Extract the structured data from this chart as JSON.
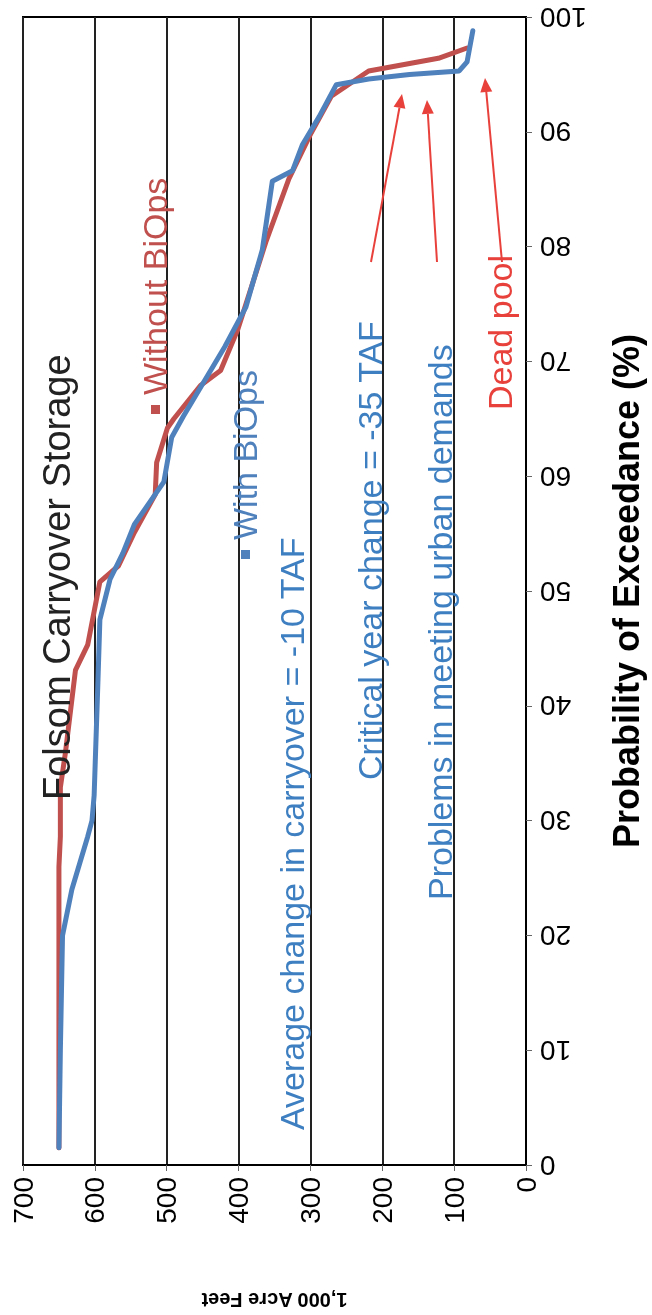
{
  "chart_data": {
    "type": "line",
    "title": "Folsom Carryover Storage",
    "xlabel": "1,000 Acre Feet",
    "ylabel": "Probability of Exceedance (%)",
    "xlim": [
      700,
      0
    ],
    "xticks": [
      700,
      600,
      500,
      400,
      300,
      200,
      100,
      0
    ],
    "ylim": [
      0,
      100
    ],
    "yticks": [
      0,
      10,
      20,
      30,
      40,
      50,
      60,
      70,
      80,
      90,
      100
    ],
    "grid": "x",
    "marker": "none",
    "line_style": "solid",
    "series": [
      {
        "name": "Without BiOps",
        "color": "#c0504d",
        "x": [
          650,
          650,
          648,
          648,
          641,
          627,
          610,
          593,
          567,
          545,
          516,
          514,
          499,
          490,
          453,
          425,
          401,
          362,
          330,
          299,
          271,
          219,
          122,
          82
        ],
        "values": [
          1.5,
          26,
          28.6,
          32.9,
          35.9,
          43.1,
          45.3,
          50.8,
          52.2,
          55.1,
          58.4,
          61.2,
          64.2,
          65,
          67.9,
          69.2,
          72.8,
          80.4,
          85.9,
          89.9,
          93.1,
          95.3,
          96.4,
          97.3
        ]
      },
      {
        "name": "With BiOps",
        "color": "#4f81bd",
        "x": [
          650,
          648,
          645,
          632,
          610,
          604,
          601,
          596,
          593,
          579,
          561,
          545,
          504,
          493,
          477,
          419,
          390,
          367,
          353,
          325,
          311,
          288,
          264,
          219,
          162,
          93,
          82,
          74
        ],
        "values": [
          1.5,
          10,
          20,
          24,
          28.6,
          30,
          32.2,
          41.6,
          47.5,
          51,
          53.3,
          55.8,
          59.5,
          63.4,
          65.2,
          71.3,
          74.7,
          79.7,
          85.7,
          86.6,
          88.9,
          91.3,
          94.1,
          94.6,
          95,
          95.3,
          96.1,
          98.8
        ]
      }
    ],
    "annotations": [
      "Average change in carryover = -10 TAF",
      "Critical year change = -35 TAF",
      "Problems in meeting urban demands",
      "Dead pool"
    ]
  }
}
